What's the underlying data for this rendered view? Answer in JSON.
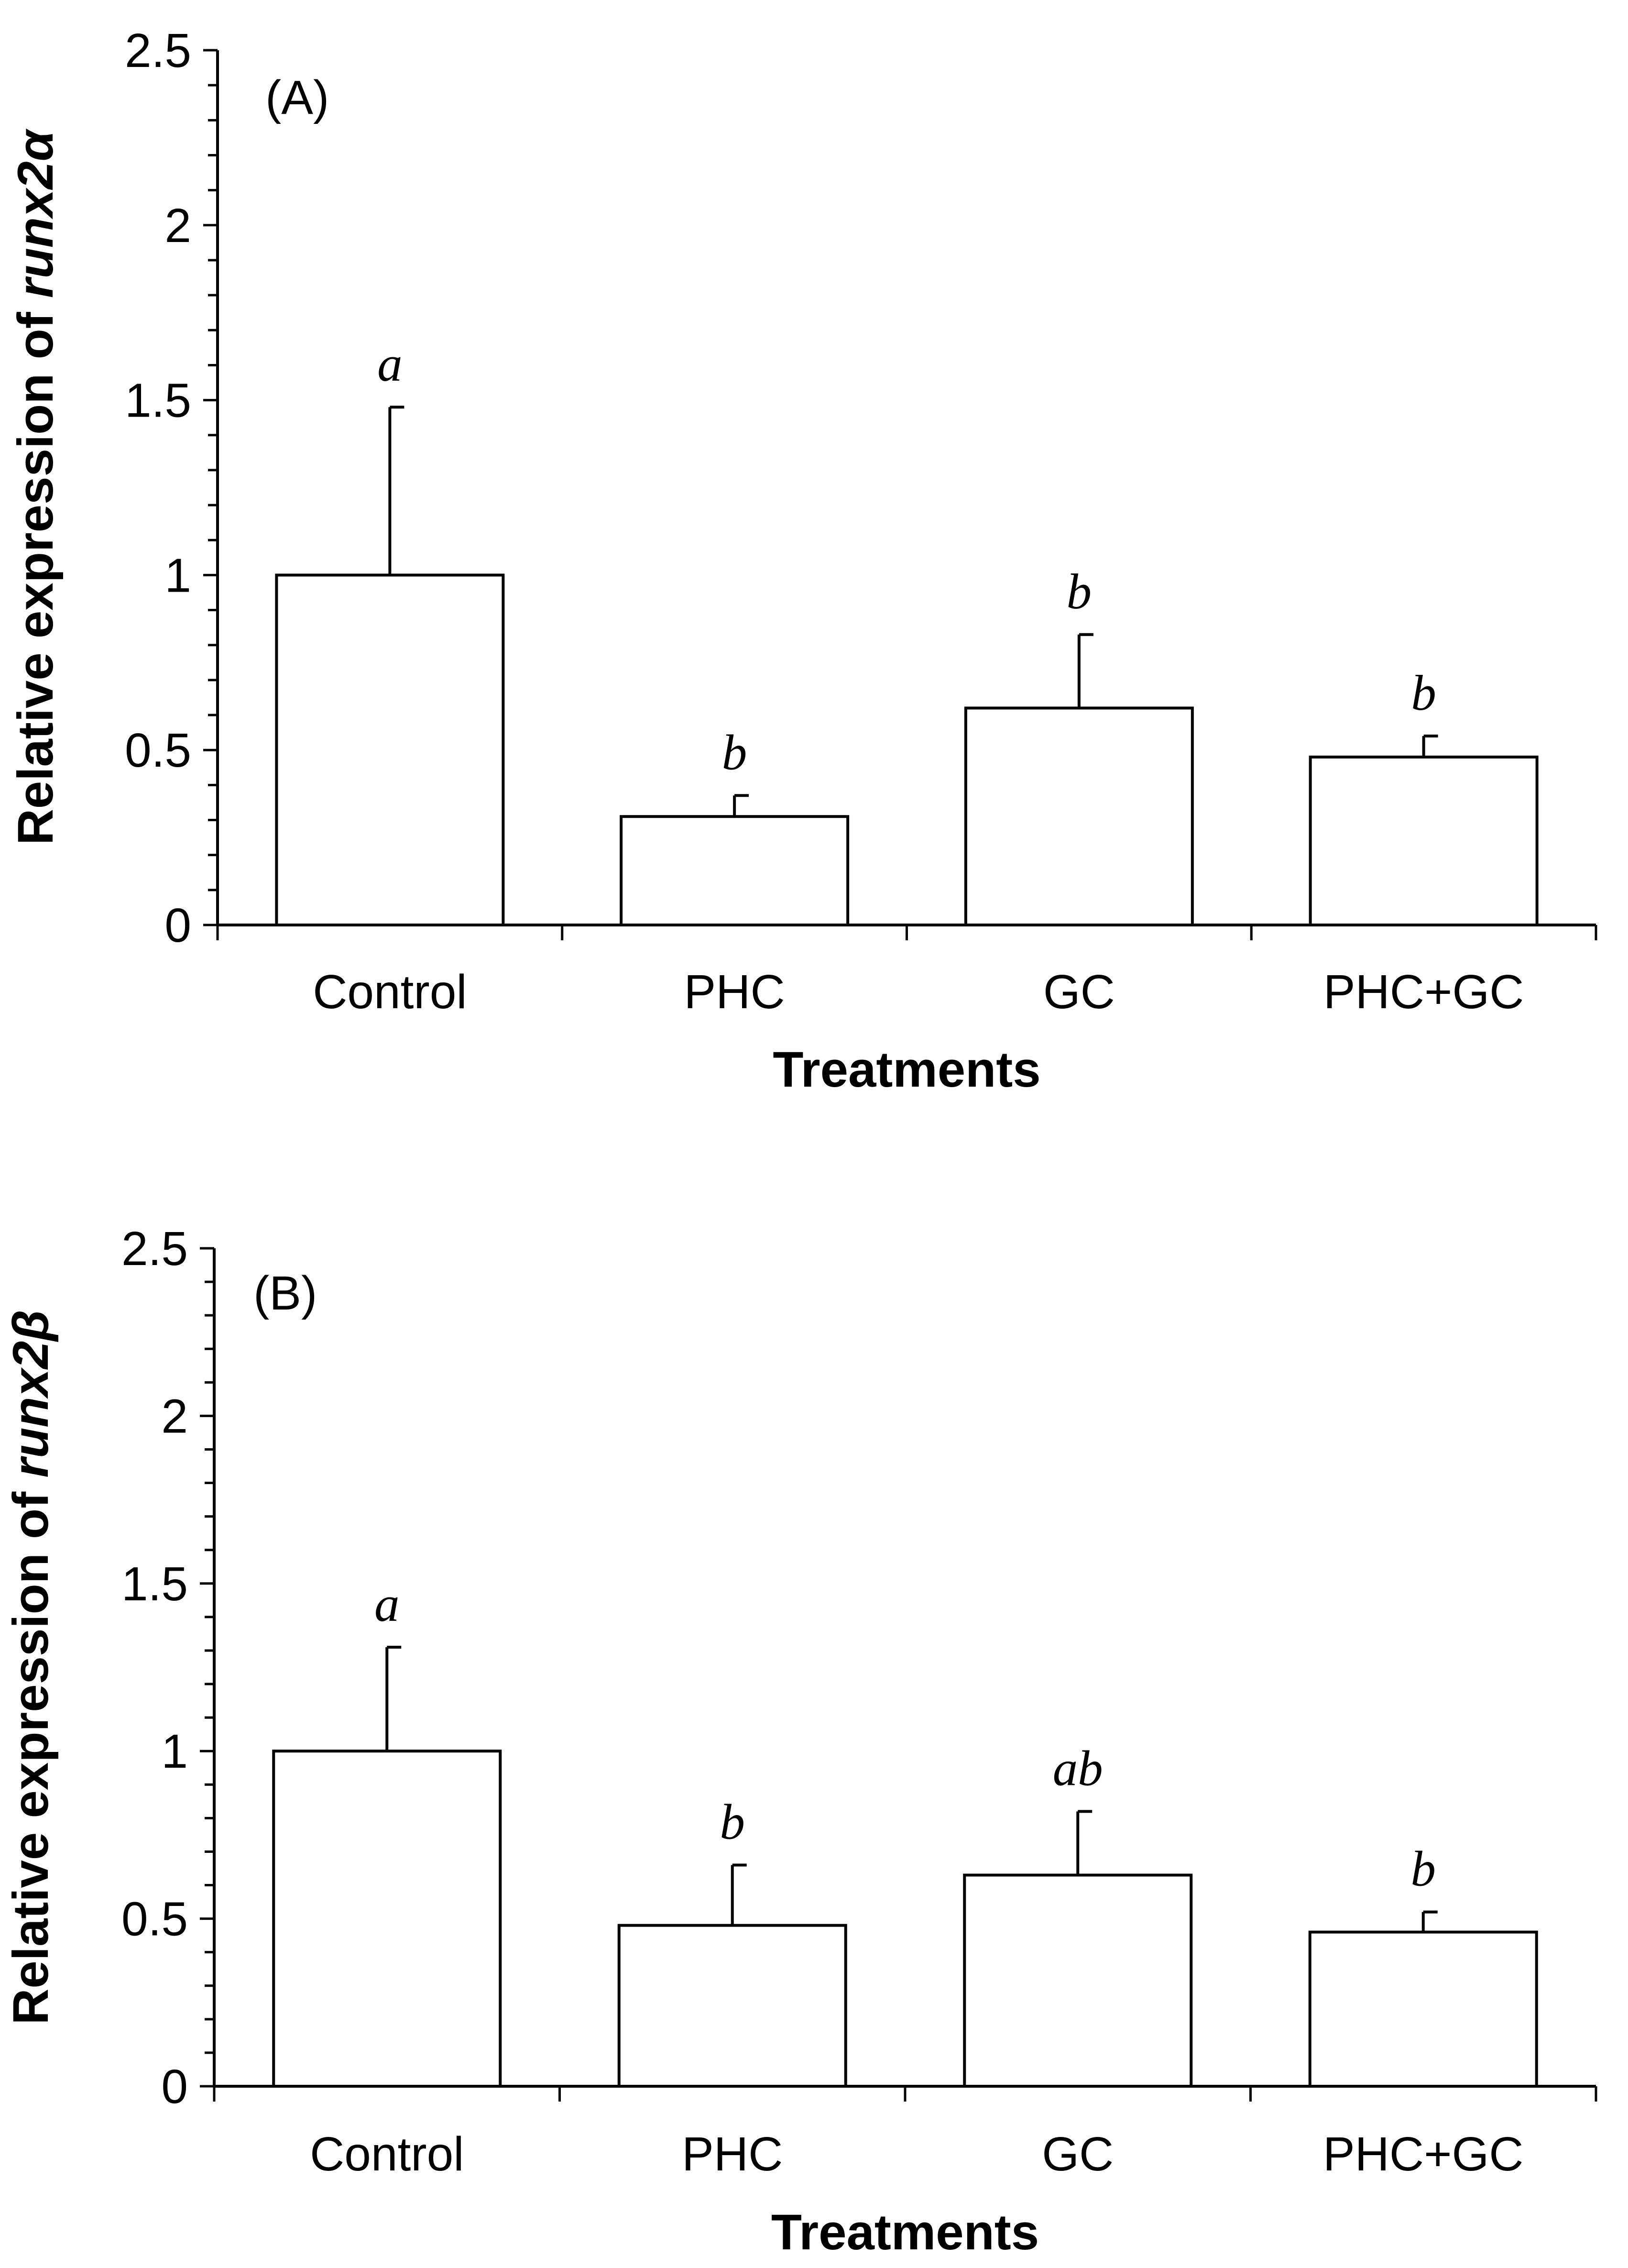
{
  "chart_data": [
    {
      "type": "bar",
      "panel_label": "(A)",
      "categories": [
        "Control",
        "PHC",
        "GC",
        "PHC+GC"
      ],
      "values": [
        1.0,
        0.31,
        0.62,
        0.48
      ],
      "error": [
        0.48,
        0.06,
        0.21,
        0.06
      ],
      "significance": [
        "a",
        "b",
        "b",
        "b"
      ],
      "xlabel": "Treatments",
      "ylabel_prefix": "Relative expression of ",
      "ylabel_gene": "runx2α",
      "ylim": [
        0,
        2.5
      ],
      "yticks": [
        "0",
        "0.5",
        "1",
        "1.5",
        "2",
        "2.5"
      ],
      "ytick_values": [
        0,
        0.5,
        1,
        1.5,
        2,
        2.5
      ],
      "grid": false,
      "bar_fill": "#ffffff",
      "bar_stroke": "#000000"
    },
    {
      "type": "bar",
      "panel_label": "(B)",
      "categories": [
        "Control",
        "PHC",
        "GC",
        "PHC+GC"
      ],
      "values": [
        1.0,
        0.48,
        0.63,
        0.46
      ],
      "error": [
        0.31,
        0.18,
        0.19,
        0.06
      ],
      "significance": [
        "a",
        "b",
        "ab",
        "b"
      ],
      "xlabel": "Treatments",
      "ylabel_prefix": "Relative expression of ",
      "ylabel_gene": "runx2β",
      "ylim": [
        0,
        2.5
      ],
      "yticks": [
        "0",
        "0.5",
        "1",
        "1.5",
        "2",
        "2.5"
      ],
      "ytick_values": [
        0,
        0.5,
        1,
        1.5,
        2,
        2.5
      ],
      "grid": false,
      "bar_fill": "#ffffff",
      "bar_stroke": "#000000"
    }
  ]
}
